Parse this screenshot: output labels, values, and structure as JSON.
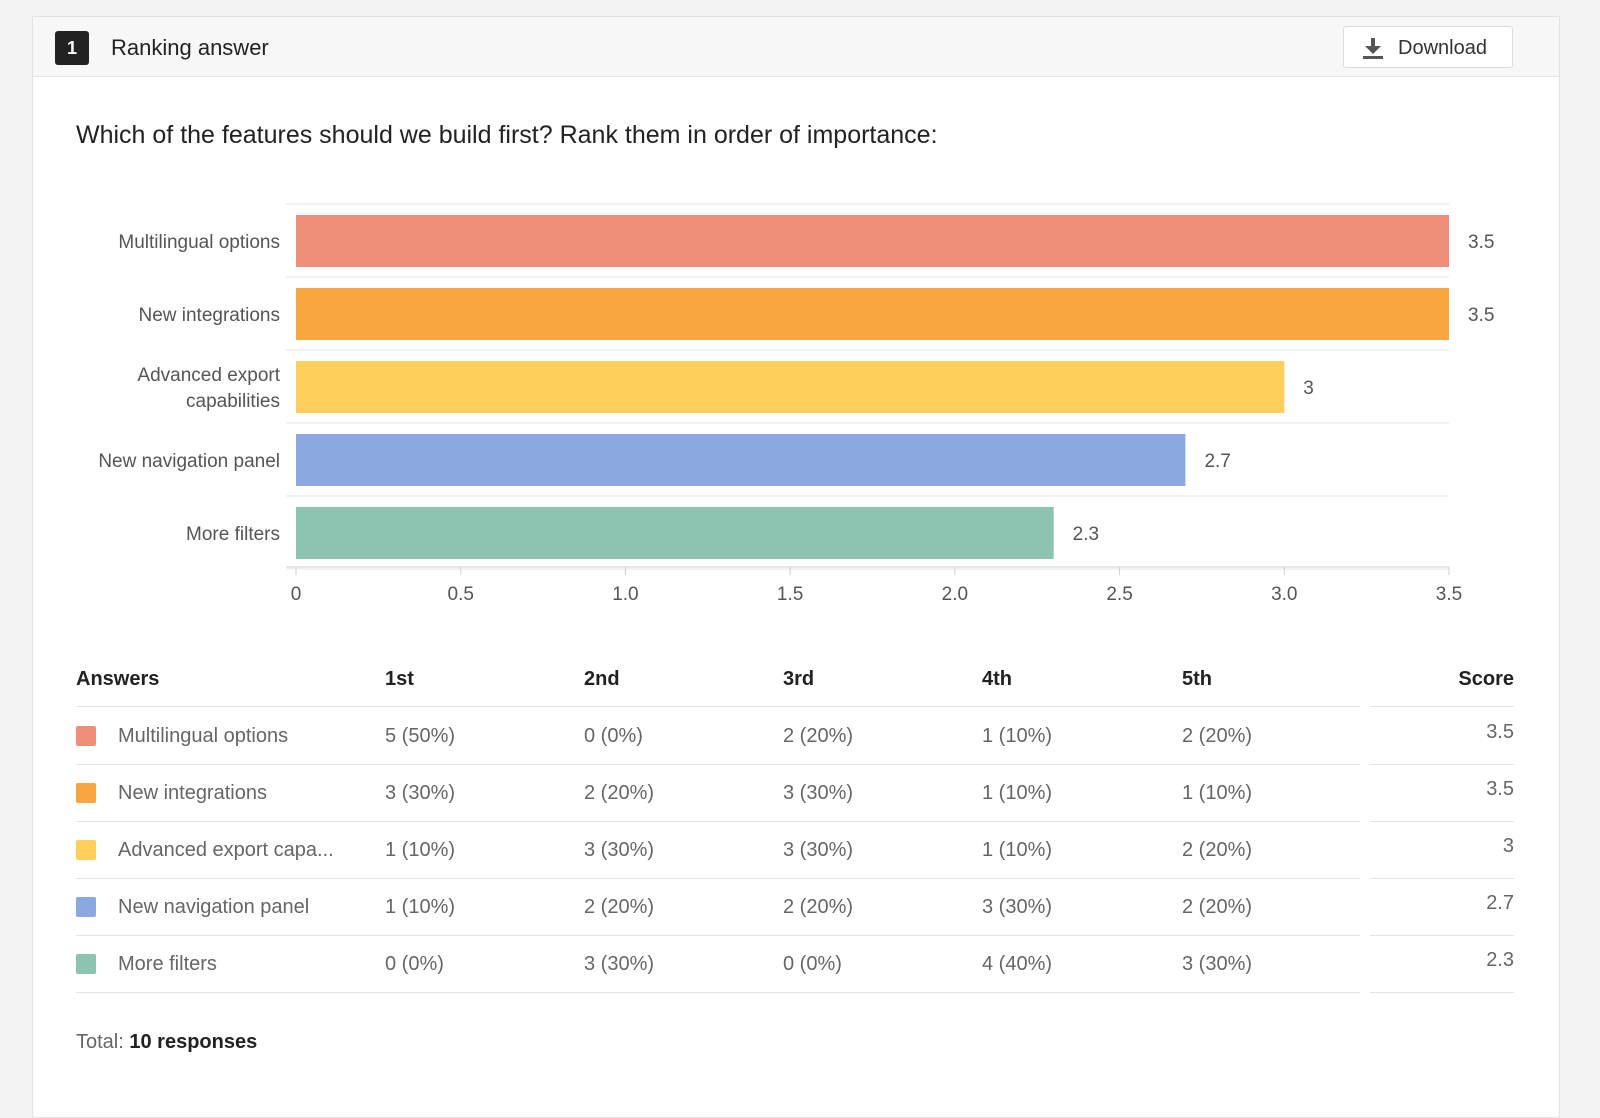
{
  "header": {
    "question_number": "1",
    "question_type": "Ranking answer",
    "download_label": "Download"
  },
  "question": "Which of the features should we build first? Rank them in order of importance:",
  "chart_data": {
    "type": "bar",
    "orientation": "horizontal",
    "categories": [
      "Multilingual options",
      "New integrations",
      "Advanced export capabilities",
      "New navigation panel",
      "More filters"
    ],
    "values": [
      3.5,
      3.5,
      3,
      2.7,
      2.3
    ],
    "value_labels": [
      "3.5",
      "3.5",
      "3",
      "2.7",
      "2.3"
    ],
    "colors": [
      "#ef8f79",
      "#f9a640",
      "#ffcf5c",
      "#8ba9e0",
      "#8cc4b1"
    ],
    "x_ticks": [
      "0",
      "0.5",
      "1.0",
      "1.5",
      "2.0",
      "2.5",
      "3.0",
      "3.5"
    ],
    "xlim": [
      0,
      3.5
    ],
    "title": "",
    "xlabel": "",
    "ylabel": "",
    "grid": true
  },
  "table": {
    "headers": [
      "Answers",
      "1st",
      "2nd",
      "3rd",
      "4th",
      "5th",
      "Score"
    ],
    "rows": [
      {
        "answer": "Multilingual options",
        "cells": [
          "5 (50%)",
          "0 (0%)",
          "2 (20%)",
          "1 (10%)",
          "2 (20%)"
        ],
        "score": "3.5",
        "color": "#ef8f79"
      },
      {
        "answer": "New integrations",
        "cells": [
          "3 (30%)",
          "2 (20%)",
          "3 (30%)",
          "1 (10%)",
          "1 (10%)"
        ],
        "score": "3.5",
        "color": "#f9a640"
      },
      {
        "answer": "Advanced export capa...",
        "cells": [
          "1 (10%)",
          "3 (30%)",
          "3 (30%)",
          "1 (10%)",
          "2 (20%)"
        ],
        "score": "3",
        "color": "#ffcf5c"
      },
      {
        "answer": "New navigation panel",
        "cells": [
          "1 (10%)",
          "2 (20%)",
          "2 (20%)",
          "3 (30%)",
          "2 (20%)"
        ],
        "score": "2.7",
        "color": "#8ba9e0"
      },
      {
        "answer": "More filters",
        "cells": [
          "0 (0%)",
          "3 (30%)",
          "0 (0%)",
          "4 (40%)",
          "3 (30%)"
        ],
        "score": "2.3",
        "color": "#8cc4b1"
      }
    ]
  },
  "footer": {
    "total_label": "Total:",
    "total_value": "10 responses"
  }
}
